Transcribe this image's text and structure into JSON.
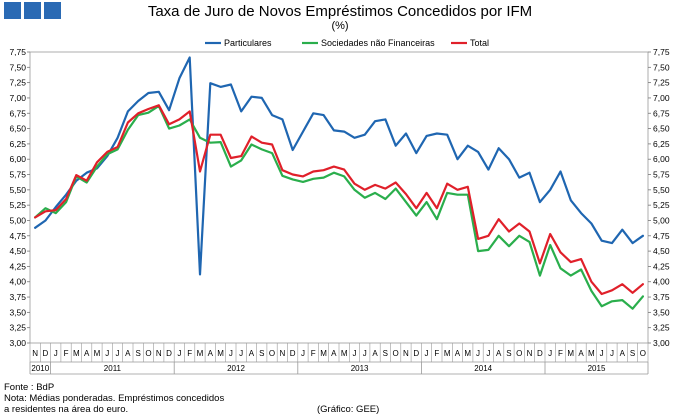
{
  "header_blocks": 3,
  "chart_data": {
    "type": "line",
    "title": "Taxa de Juro de Novos Empréstimos Concedidos por IFM",
    "unit": "(%)",
    "ylim": [
      3.0,
      7.75
    ],
    "yticks": [
      "3,00",
      "3,25",
      "3,50",
      "3,75",
      "4,00",
      "4,25",
      "4,50",
      "4,75",
      "5,00",
      "5,25",
      "5,50",
      "5,75",
      "6,00",
      "6,25",
      "6,50",
      "6,75",
      "7,00",
      "7,25",
      "7,50",
      "7,75"
    ],
    "months": [
      "N",
      "D",
      "J",
      "F",
      "M",
      "A",
      "M",
      "J",
      "J",
      "A",
      "S",
      "O",
      "N",
      "D",
      "J",
      "F",
      "M",
      "A",
      "M",
      "J",
      "J",
      "A",
      "S",
      "O",
      "N",
      "D",
      "J",
      "F",
      "M",
      "A",
      "M",
      "J",
      "J",
      "A",
      "S",
      "O",
      "N",
      "D",
      "J",
      "F",
      "M",
      "A",
      "M",
      "J",
      "J",
      "A",
      "S",
      "O",
      "N",
      "D",
      "J",
      "F",
      "M",
      "A",
      "M",
      "J",
      "J",
      "A",
      "S",
      "O"
    ],
    "years": [
      {
        "label": "2010",
        "start": 0,
        "end": 2
      },
      {
        "label": "2011",
        "start": 2,
        "end": 14
      },
      {
        "label": "2012",
        "start": 14,
        "end": 26
      },
      {
        "label": "2013",
        "start": 26,
        "end": 38
      },
      {
        "label": "2014",
        "start": 38,
        "end": 50
      },
      {
        "label": "2015",
        "start": 50,
        "end": 60
      }
    ],
    "series": [
      {
        "name": "Particulares",
        "color": "#1f66b1",
        "values": [
          4.88,
          5.0,
          5.22,
          5.42,
          5.65,
          5.78,
          5.85,
          6.05,
          6.35,
          6.78,
          6.95,
          7.08,
          7.1,
          6.8,
          7.32,
          7.66,
          4.12,
          7.24,
          7.18,
          7.22,
          6.78,
          7.02,
          7.0,
          6.72,
          6.65,
          6.15,
          6.45,
          6.75,
          6.72,
          6.47,
          6.45,
          6.35,
          6.4,
          6.62,
          6.65,
          6.22,
          6.42,
          6.1,
          6.38,
          6.42,
          6.4,
          6.0,
          6.22,
          6.12,
          5.83,
          6.18,
          6.0,
          5.7,
          5.78,
          5.3,
          5.5,
          5.8,
          5.33,
          5.12,
          4.95,
          4.67,
          4.63,
          4.85,
          4.63,
          4.75
        ]
      },
      {
        "name": "Sociedades não Financeiras",
        "color": "#2aae4c",
        "values": [
          5.05,
          5.2,
          5.12,
          5.3,
          5.72,
          5.62,
          5.88,
          6.08,
          6.16,
          6.48,
          6.72,
          6.76,
          6.87,
          6.5,
          6.55,
          6.65,
          6.35,
          6.27,
          6.28,
          5.88,
          5.98,
          6.24,
          6.16,
          6.1,
          5.73,
          5.67,
          5.63,
          5.68,
          5.7,
          5.78,
          5.72,
          5.5,
          5.37,
          5.45,
          5.35,
          5.52,
          5.3,
          5.08,
          5.3,
          5.02,
          5.45,
          5.42,
          5.42,
          4.5,
          4.52,
          4.75,
          4.58,
          4.75,
          4.65,
          4.1,
          4.6,
          4.22,
          4.1,
          4.2,
          3.85,
          3.6,
          3.68,
          3.7,
          3.56,
          3.76
        ]
      },
      {
        "name": "Total",
        "color": "#e0202a",
        "values": [
          5.05,
          5.15,
          5.17,
          5.35,
          5.74,
          5.65,
          5.95,
          6.12,
          6.2,
          6.6,
          6.75,
          6.82,
          6.88,
          6.57,
          6.65,
          6.78,
          5.8,
          6.4,
          6.4,
          6.02,
          6.05,
          6.37,
          6.27,
          6.24,
          5.82,
          5.75,
          5.72,
          5.8,
          5.82,
          5.88,
          5.83,
          5.6,
          5.5,
          5.58,
          5.52,
          5.62,
          5.43,
          5.2,
          5.45,
          5.2,
          5.6,
          5.5,
          5.55,
          4.7,
          4.75,
          5.02,
          4.82,
          4.95,
          4.82,
          4.3,
          4.78,
          4.48,
          4.32,
          4.37,
          4.0,
          3.8,
          3.86,
          3.96,
          3.82,
          3.96
        ]
      }
    ]
  },
  "notes": {
    "source": "Fonte : BdP",
    "line1": "Nota: Médias ponderadas. Empréstimos concedidos",
    "line2": "a residentes na área do euro.",
    "credit": "(Gráfico: GEE)"
  }
}
